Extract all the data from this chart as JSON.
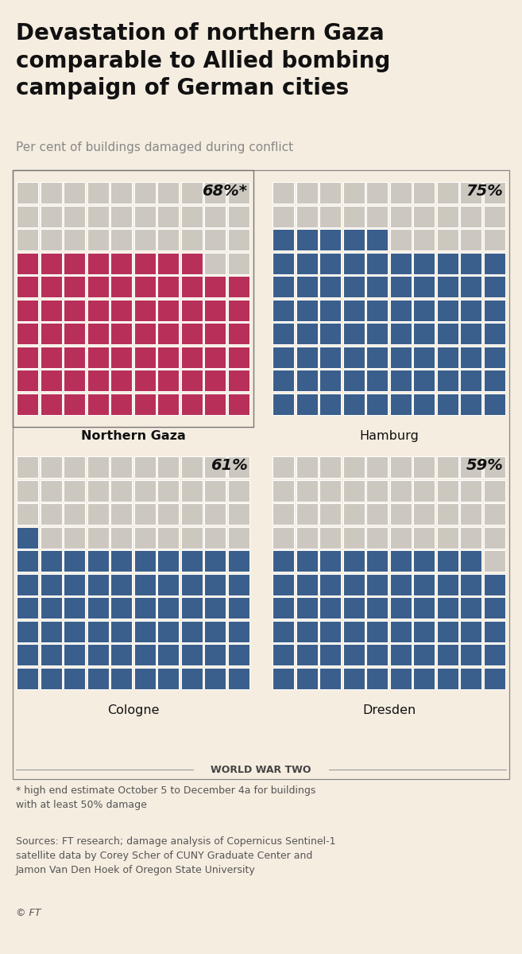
{
  "title": "Devastation of northern Gaza\ncomparable to Allied bombing\ncampaign of German cities",
  "subtitle": "Per cent of buildings damaged during conflict",
  "background_color": "#f5ede0",
  "grid_rows": 10,
  "grid_cols": 10,
  "panels": [
    {
      "label": "Northern Gaza",
      "label_bold": true,
      "pct": 68,
      "pct_label": "68%*",
      "color_damaged": "#b8305a",
      "color_undamaged": "#ccc8c0"
    },
    {
      "label": "Hamburg",
      "label_bold": false,
      "pct": 75,
      "pct_label": "75%",
      "color_damaged": "#3b5f8c",
      "color_undamaged": "#ccc8c0"
    },
    {
      "label": "Cologne",
      "label_bold": false,
      "pct": 61,
      "pct_label": "61%",
      "color_damaged": "#3b5f8c",
      "color_undamaged": "#ccc8c0"
    },
    {
      "label": "Dresden",
      "label_bold": false,
      "pct": 59,
      "pct_label": "59%",
      "color_damaged": "#3b5f8c",
      "color_undamaged": "#ccc8c0"
    }
  ],
  "ww2_label": "WORLD WAR TWO",
  "footnote": "* high end estimate October 5 to December 4a for buildings\nwith at least 50% damage",
  "sources": "Sources: FT research; damage analysis of Copernicus Sentinel-1\nsatellite data by Corey Scher of CUNY Graduate Center and\nJamon Van Den Hoek of Oregon State University",
  "copyright": "© FT",
  "top_bar_color": "#111111",
  "border_color_ng": "#777777",
  "border_color_ww2": "#888888"
}
